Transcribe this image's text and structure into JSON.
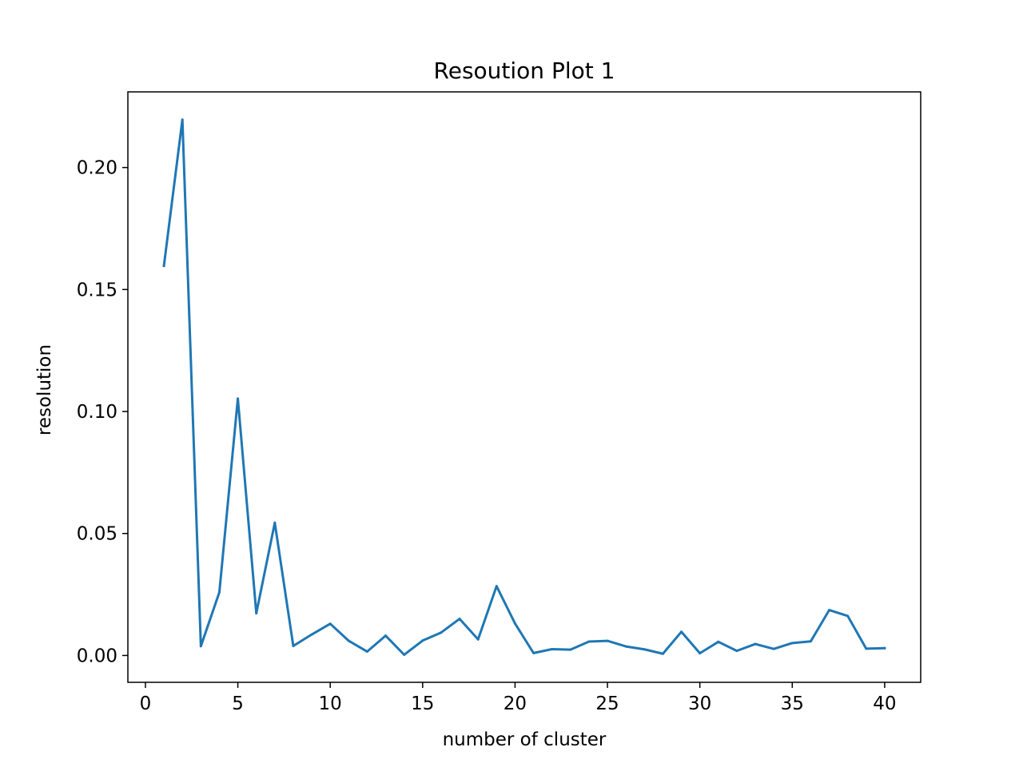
{
  "chart_data": {
    "type": "line",
    "title": "Resoution Plot 1",
    "xlabel": "number of cluster",
    "ylabel": "resolution",
    "xlim": [
      -0.95,
      41.95
    ],
    "ylim": [
      -0.011,
      0.231
    ],
    "xticks": [
      0,
      5,
      10,
      15,
      20,
      25,
      30,
      35,
      40
    ],
    "xtick_labels": [
      "0",
      "5",
      "10",
      "15",
      "20",
      "25",
      "30",
      "35",
      "40"
    ],
    "yticks": [
      0.0,
      0.05,
      0.1,
      0.15,
      0.2
    ],
    "ytick_labels": [
      "0.00",
      "0.05",
      "0.10",
      "0.15",
      "0.20"
    ],
    "grid": false,
    "line_color": "#1f77b4",
    "series": [
      {
        "x": [
          1,
          2,
          3,
          4,
          5,
          6,
          7,
          8,
          9,
          10,
          11,
          12,
          13,
          14,
          15,
          16,
          17,
          18,
          19,
          20,
          21,
          22,
          23,
          24,
          25,
          26,
          27,
          28,
          29,
          30,
          31,
          32,
          33,
          34,
          35,
          36,
          37,
          38,
          39,
          40
        ],
        "values": [
          0.1597,
          0.2196,
          0.0038,
          0.0259,
          0.1053,
          0.0173,
          0.0544,
          0.0039,
          0.0086,
          0.013,
          0.006,
          0.0016,
          0.0081,
          0.0003,
          0.0061,
          0.0094,
          0.015,
          0.0066,
          0.0284,
          0.0131,
          0.001,
          0.0026,
          0.0024,
          0.0057,
          0.006,
          0.0037,
          0.0025,
          0.0007,
          0.0097,
          0.0009,
          0.0056,
          0.0019,
          0.0047,
          0.0027,
          0.0051,
          0.0058,
          0.0186,
          0.0162,
          0.0028,
          0.003
        ]
      }
    ]
  }
}
